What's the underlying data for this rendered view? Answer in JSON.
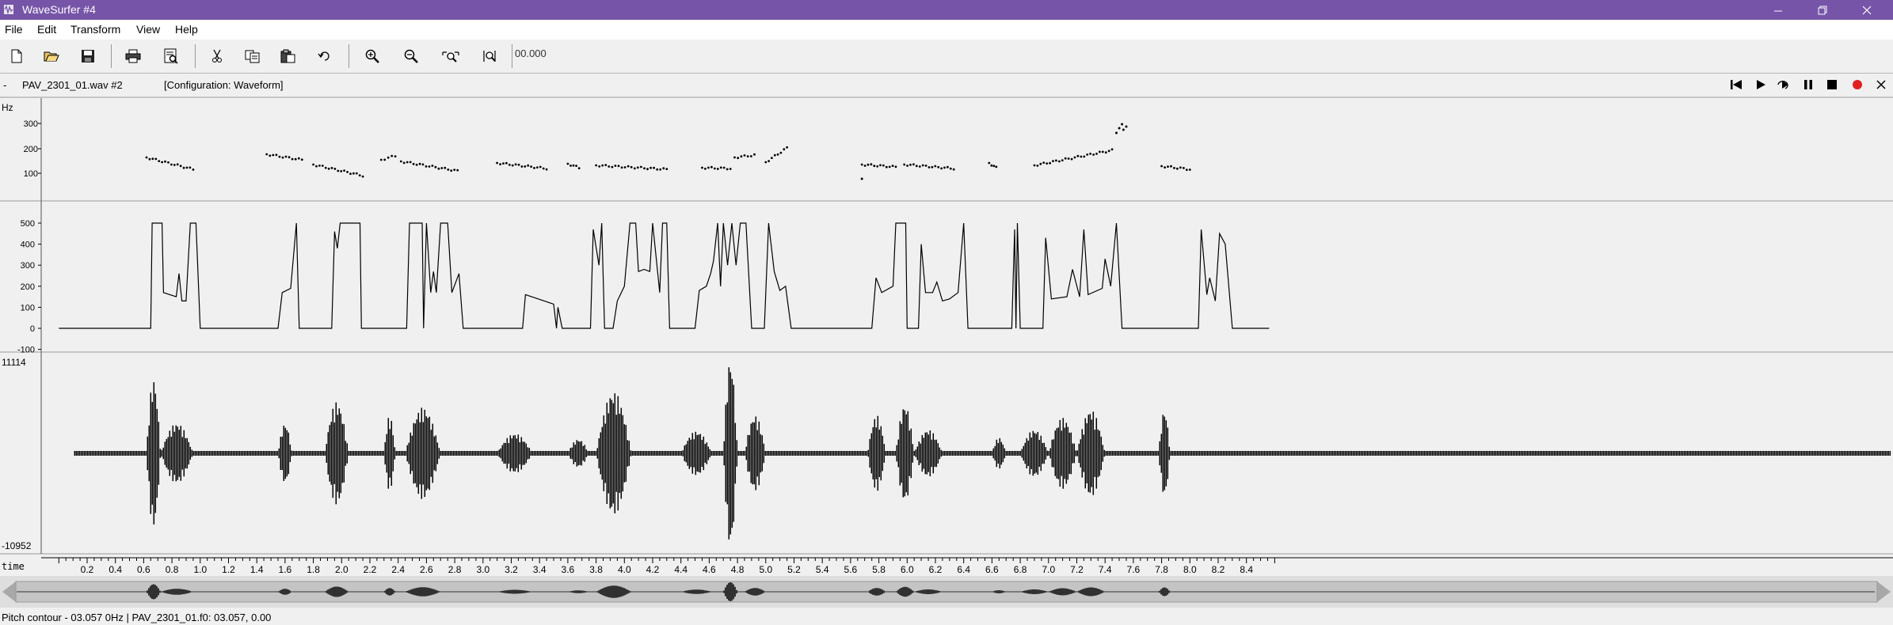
{
  "window": {
    "title": "WaveSurfer #4"
  },
  "menu": [
    "File",
    "Edit",
    "Transform",
    "View",
    "Help"
  ],
  "toolbar": {
    "time_value": "00.000"
  },
  "sound": {
    "file_label": "PAV_2301_01.wav #2",
    "config_label": "[Configuration: Waveform]",
    "dash": "-"
  },
  "pitch_panel": {
    "unit": "Hz",
    "ticks": [
      "300",
      "200",
      "100"
    ]
  },
  "energy_panel": {
    "ticks": [
      "500",
      "400",
      "300",
      "200",
      "100",
      "0",
      "-100"
    ]
  },
  "waveform_panel": {
    "max_label": "11114",
    "min_label": "-10952"
  },
  "time_axis": {
    "label": "time",
    "ticks": [
      "0.2",
      "0.4",
      "0.6",
      "0.8",
      "1.0",
      "1.2",
      "1.4",
      "1.6",
      "1.8",
      "2.0",
      "2.2",
      "2.4",
      "2.6",
      "2.8",
      "3.0",
      "3.2",
      "3.4",
      "3.6",
      "3.8",
      "4.0",
      "4.2",
      "4.4",
      "4.6",
      "4.8",
      "5.0",
      "5.2",
      "5.4",
      "5.6",
      "5.8",
      "6.0",
      "6.2",
      "6.4",
      "6.6",
      "6.8",
      "7.0",
      "7.2",
      "7.4",
      "7.6",
      "7.8",
      "8.0",
      "8.2",
      "8.4"
    ]
  },
  "status": {
    "text": "Pitch contour - 03.057 0Hz  | PAV_2301_01.f0: 03.057, 0.00"
  },
  "colors": {
    "titlebar": "#7654a8",
    "record": "#e02020",
    "trace": "#000000"
  }
}
